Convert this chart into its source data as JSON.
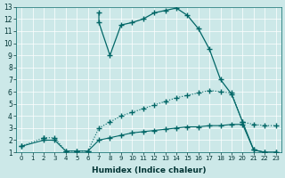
{
  "xlabel": "Humidex (Indice chaleur)",
  "bg_color": "#cce8e8",
  "line_color": "#006666",
  "xlim": [
    -0.5,
    23.5
  ],
  "ylim": [
    1,
    13
  ],
  "xticks": [
    0,
    1,
    2,
    3,
    4,
    5,
    6,
    7,
    8,
    9,
    10,
    11,
    12,
    13,
    14,
    15,
    16,
    17,
    18,
    19,
    20,
    21,
    22,
    23
  ],
  "yticks": [
    1,
    2,
    3,
    4,
    5,
    6,
    7,
    8,
    9,
    10,
    11,
    12,
    13
  ],
  "curve1_x": [
    7,
    7,
    8,
    9,
    10,
    11,
    12,
    13,
    14,
    15,
    16,
    17,
    18,
    19,
    20,
    21,
    22,
    23
  ],
  "curve1_y": [
    12.5,
    11.7,
    9.0,
    11.5,
    11.7,
    12.0,
    12.5,
    12.7,
    12.9,
    12.3,
    11.2,
    9.5,
    7.0,
    5.8,
    3.5,
    1.2,
    1.0,
    1.0
  ],
  "curve2_x": [
    0,
    2,
    2,
    3,
    4,
    5,
    6,
    7,
    8,
    9,
    10,
    11,
    12,
    13,
    14,
    15,
    16,
    17,
    18,
    19,
    20,
    21,
    22,
    23
  ],
  "curve2_y": [
    1.5,
    2.2,
    2.2,
    2.2,
    1.1,
    1.1,
    1.1,
    3.0,
    3.5,
    4.0,
    4.3,
    4.6,
    4.9,
    5.2,
    5.5,
    5.7,
    5.9,
    6.1,
    6.0,
    5.9,
    3.5,
    3.3,
    3.2,
    3.2
  ],
  "curve3_x": [
    0,
    2,
    3,
    4,
    5,
    6,
    7,
    8,
    9,
    10,
    11,
    12,
    13,
    14,
    15,
    16,
    17,
    18,
    19,
    20,
    21,
    22,
    23
  ],
  "curve3_y": [
    1.5,
    2.0,
    2.0,
    1.1,
    1.1,
    1.1,
    2.0,
    2.2,
    2.4,
    2.6,
    2.7,
    2.8,
    2.9,
    3.0,
    3.1,
    3.1,
    3.2,
    3.2,
    3.3,
    3.3,
    1.2,
    1.0,
    1.0
  ]
}
